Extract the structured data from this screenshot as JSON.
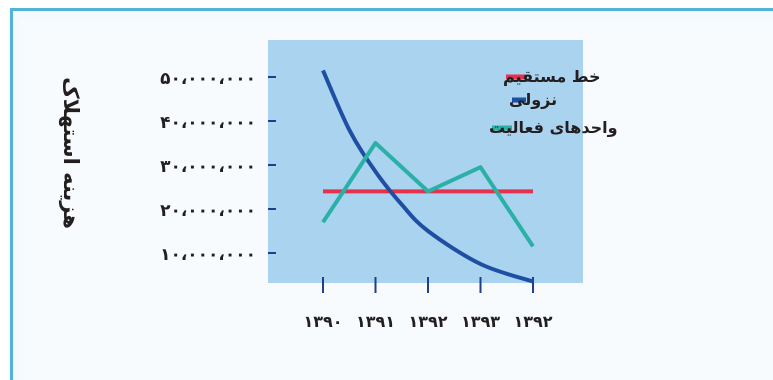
{
  "chart_data": {
    "type": "line",
    "ylabel": "هزینه استهلاک",
    "xlabel": "",
    "categories": [
      "۱۳۹۰",
      "۱۳۹۱",
      "۱۳۹۲",
      "۱۳۹۳",
      "۱۳۹۲"
    ],
    "y_ticks": [
      {
        "value": 50000000,
        "label": "۵۰،۰۰۰،۰۰۰"
      },
      {
        "value": 40000000,
        "label": "۴۰،۰۰۰،۰۰۰"
      },
      {
        "value": 30000000,
        "label": "۳۰،۰۰۰،۰۰۰"
      },
      {
        "value": 20000000,
        "label": "۲۰،۰۰۰،۰۰۰"
      },
      {
        "value": 10000000,
        "label": "۱۰،۰۰۰،۰۰۰"
      }
    ],
    "ylim": [
      0,
      60000000
    ],
    "legend_position": "top-right",
    "series": [
      {
        "name": "خط مستقیم",
        "color": "#e4314d",
        "x": [
          0,
          1,
          2,
          3,
          4
        ],
        "values": [
          24000000,
          24000000,
          24000000,
          24000000,
          24000000
        ]
      },
      {
        "name": "نزولی",
        "color": "#1f4fa3",
        "smooth": true,
        "x": [
          0,
          0.5,
          1,
          1.5,
          2,
          3,
          4
        ],
        "values": [
          51500000,
          38000000,
          28500000,
          21000000,
          15000000,
          7500000,
          3500000
        ]
      },
      {
        "name": "واحدهای فعالیت",
        "color": "#2ab0a6",
        "x": [
          0,
          1,
          2,
          3,
          4
        ],
        "values": [
          17000000,
          35000000,
          24000000,
          29500000,
          11500000
        ]
      }
    ],
    "grid": false,
    "plot_background": "#a9d3ee"
  }
}
